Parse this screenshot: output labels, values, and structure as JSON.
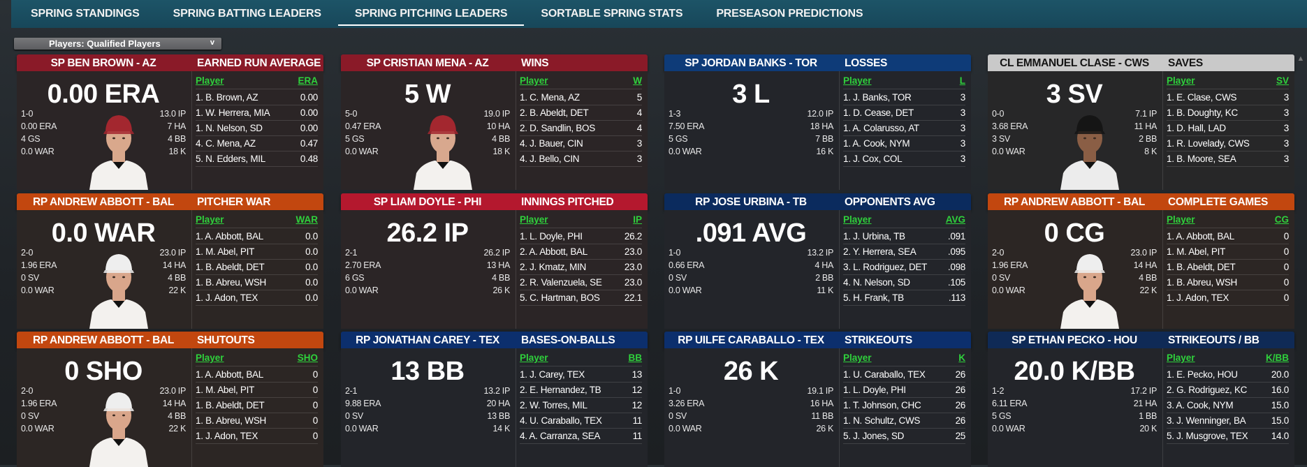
{
  "tabs": [
    {
      "label": "SPRING STANDINGS",
      "active": false
    },
    {
      "label": "SPRING BATTING LEADERS",
      "active": false
    },
    {
      "label": "SPRING PITCHING LEADERS",
      "active": true
    },
    {
      "label": "SORTABLE SPRING STATS",
      "active": false
    },
    {
      "label": "PRESEASON PREDICTIONS",
      "active": false
    }
  ],
  "filter": {
    "label": "Players: Qualified Players",
    "icon": "chevron-down-icon",
    "glyph": "v"
  },
  "table_player_header": "Player",
  "cards": [
    {
      "player": "SP BEN BROWN - AZ",
      "title": "EARNED RUN AVERAGE",
      "value": "0.00 ERA",
      "hdr": "#8a1a28",
      "hdrText": "#fff",
      "body": "#2b2526",
      "photo": true,
      "cap": "#a3272f",
      "jersey": "#f3f1ee",
      "skin": "#d9a88c",
      "left": [
        "1-0",
        "0.00 ERA",
        "4 GS",
        "0.0 WAR"
      ],
      "right": [
        "13.0 IP",
        "7 HA",
        "4 BB",
        "18 K"
      ],
      "col": "ERA",
      "rows": [
        [
          "1. B. Brown, AZ",
          "0.00"
        ],
        [
          "1. W. Herrera, MIA",
          "0.00"
        ],
        [
          "1. N. Nelson, SD",
          "0.00"
        ],
        [
          "4. C. Mena, AZ",
          "0.47"
        ],
        [
          "5. N. Edders, MIL",
          "0.48"
        ]
      ]
    },
    {
      "player": "SP CRISTIAN MENA - AZ",
      "title": "WINS",
      "value": "5 W",
      "hdr": "#8a1a28",
      "hdrText": "#fff",
      "body": "#2b2526",
      "photo": true,
      "cap": "#a3272f",
      "jersey": "#f3f1ee",
      "skin": "#d8a88e",
      "left": [
        "5-0",
        "0.47 ERA",
        "5 GS",
        "0.0 WAR"
      ],
      "right": [
        "19.0 IP",
        "10 HA",
        "4 BB",
        "18 K"
      ],
      "col": "W",
      "rows": [
        [
          "1. C. Mena, AZ",
          "5"
        ],
        [
          "2. B. Abeldt, DET",
          "4"
        ],
        [
          "2. D. Sandlin, BOS",
          "4"
        ],
        [
          "4. J. Bauer, CIN",
          "3"
        ],
        [
          "4. J. Bello, CIN",
          "3"
        ]
      ]
    },
    {
      "player": "SP JORDAN BANKS - TOR",
      "title": "LOSSES",
      "value": "3 L",
      "hdr": "#0e3b78",
      "hdrText": "#fff",
      "body": "#23252a",
      "photo": false,
      "left": [
        "1-3",
        "7.50 ERA",
        "5 GS",
        "0.0 WAR"
      ],
      "right": [
        "12.0 IP",
        "18 HA",
        "7 BB",
        "16 K"
      ],
      "col": "L",
      "rows": [
        [
          "1. J. Banks, TOR",
          "3"
        ],
        [
          "1. D. Cease, DET",
          "3"
        ],
        [
          "1. A. Colarusso, AT",
          "3"
        ],
        [
          "1. A. Cook, NYM",
          "3"
        ],
        [
          "1. J. Cox, COL",
          "3"
        ]
      ]
    },
    {
      "player": "CL EMMANUEL CLASE - CWS",
      "title": "SAVES",
      "value": "3 SV",
      "hdr": "#c9c9c9",
      "hdrText": "#151515",
      "body": "#272728",
      "photo": true,
      "cap": "#151515",
      "jersey": "#ececec",
      "skin": "#8a5e45",
      "left": [
        "0-0",
        "3.68 ERA",
        "3 SV",
        "0.0 WAR"
      ],
      "right": [
        "7.1 IP",
        "11 HA",
        "2 BB",
        "8 K"
      ],
      "col": "SV",
      "rows": [
        [
          "1. E. Clase, CWS",
          "3"
        ],
        [
          "1. B. Doughty, KC",
          "3"
        ],
        [
          "1. D. Hall, LAD",
          "3"
        ],
        [
          "1. R. Lovelady, CWS",
          "3"
        ],
        [
          "1. B. Moore, SEA",
          "3"
        ]
      ]
    },
    {
      "player": "RP ANDREW ABBOTT - BAL",
      "title": "PITCHER WAR",
      "value": "0.0 WAR",
      "hdr": "#c2470f",
      "hdrText": "#fff",
      "body": "#2c2624",
      "photo": true,
      "cap": "#eeeeee",
      "jersey": "#f3f1ee",
      "skin": "#d9a68b",
      "left": [
        "2-0",
        "1.96 ERA",
        "0 SV",
        "0.0 WAR"
      ],
      "right": [
        "23.0 IP",
        "14 HA",
        "4 BB",
        "22 K"
      ],
      "col": "WAR",
      "rows": [
        [
          "1. A. Abbott, BAL",
          "0.0"
        ],
        [
          "1. M. Abel, PIT",
          "0.0"
        ],
        [
          "1. B. Abeldt, DET",
          "0.0"
        ],
        [
          "1. B. Abreu, WSH",
          "0.0"
        ],
        [
          "1. J. Adon, TEX",
          "0.0"
        ]
      ]
    },
    {
      "player": "SP LIAM DOYLE - PHI",
      "title": "INNINGS PITCHED",
      "value": "26.2 IP",
      "hdr": "#b4182e",
      "hdrText": "#fff",
      "body": "#2b2526",
      "photo": false,
      "left": [
        "2-1",
        "2.70 ERA",
        "6 GS",
        "0.0 WAR"
      ],
      "right": [
        "26.2 IP",
        "13 HA",
        "4 BB",
        "26 K"
      ],
      "col": "IP",
      "rows": [
        [
          "1. L. Doyle, PHI",
          "26.2"
        ],
        [
          "2. A. Abbott, BAL",
          "23.0"
        ],
        [
          "2. J. Kmatz, MIN",
          "23.0"
        ],
        [
          "2. R. Valenzuela, SE",
          "23.0"
        ],
        [
          "5. C. Hartman, BOS",
          "22.1"
        ]
      ]
    },
    {
      "player": "RP JOSE URBINA - TB",
      "title": "OPPONENTS AVG",
      "value": ".091 AVG",
      "hdr": "#0b2b5e",
      "hdrText": "#fff",
      "body": "#23252a",
      "photo": false,
      "left": [
        "1-0",
        "0.66 ERA",
        "0 SV",
        "0.0 WAR"
      ],
      "right": [
        "13.2 IP",
        "4 HA",
        "2 BB",
        "11 K"
      ],
      "col": "AVG",
      "rows": [
        [
          "1. J. Urbina, TB",
          ".091"
        ],
        [
          "2. Y. Herrera, SEA",
          ".095"
        ],
        [
          "3. L. Rodriguez, DET",
          ".098"
        ],
        [
          "4. N. Nelson, SD",
          ".105"
        ],
        [
          "5. H. Frank, TB",
          ".113"
        ]
      ]
    },
    {
      "player": "RP ANDREW ABBOTT - BAL",
      "title": "COMPLETE GAMES",
      "value": "0 CG",
      "hdr": "#c2470f",
      "hdrText": "#fff",
      "body": "#2c2624",
      "photo": true,
      "cap": "#eeeeee",
      "jersey": "#f3f1ee",
      "skin": "#d9a68b",
      "left": [
        "2-0",
        "1.96 ERA",
        "0 SV",
        "0.0 WAR"
      ],
      "right": [
        "23.0 IP",
        "14 HA",
        "4 BB",
        "22 K"
      ],
      "col": "CG",
      "rows": [
        [
          "1. A. Abbott, BAL",
          "0"
        ],
        [
          "1. M. Abel, PIT",
          "0"
        ],
        [
          "1. B. Abeldt, DET",
          "0"
        ],
        [
          "1. B. Abreu, WSH",
          "0"
        ],
        [
          "1. J. Adon, TEX",
          "0"
        ]
      ]
    },
    {
      "player": "RP ANDREW ABBOTT - BAL",
      "title": "SHUTOUTS",
      "value": "0 SHO",
      "hdr": "#c2470f",
      "hdrText": "#fff",
      "body": "#2c2624",
      "photo": true,
      "cap": "#eeeeee",
      "jersey": "#f3f1ee",
      "skin": "#d9a68b",
      "left": [
        "2-0",
        "1.96 ERA",
        "0 SV",
        "0.0 WAR"
      ],
      "right": [
        "23.0 IP",
        "14 HA",
        "4 BB",
        "22 K"
      ],
      "col": "SHO",
      "rows": [
        [
          "1. A. Abbott, BAL",
          "0"
        ],
        [
          "1. M. Abel, PIT",
          "0"
        ],
        [
          "1. B. Abeldt, DET",
          "0"
        ],
        [
          "1. B. Abreu, WSH",
          "0"
        ],
        [
          "1. J. Adon, TEX",
          "0"
        ]
      ]
    },
    {
      "player": "RP JONATHAN CAREY - TEX",
      "title": "BASES-ON-BALLS",
      "value": "13 BB",
      "hdr": "#0c2f6d",
      "hdrText": "#fff",
      "body": "#23252a",
      "photo": false,
      "left": [
        "2-1",
        "9.88 ERA",
        "0 SV",
        "0.0 WAR"
      ],
      "right": [
        "13.2 IP",
        "20 HA",
        "13 BB",
        "14 K"
      ],
      "col": "BB",
      "rows": [
        [
          "1. J. Carey, TEX",
          "13"
        ],
        [
          "2. E. Hernandez, TB",
          "12"
        ],
        [
          "2. W. Torres, MIL",
          "12"
        ],
        [
          "4. U. Caraballo, TEX",
          "11"
        ],
        [
          "4. A. Carranza, SEA",
          "11"
        ]
      ]
    },
    {
      "player": "RP UILFE CARABALLO - TEX",
      "title": "STRIKEOUTS",
      "value": "26 K",
      "hdr": "#0c2f6d",
      "hdrText": "#fff",
      "body": "#23252a",
      "photo": false,
      "left": [
        "1-0",
        "3.26 ERA",
        "0 SV",
        "0.0 WAR"
      ],
      "right": [
        "19.1 IP",
        "16 HA",
        "11 BB",
        "26 K"
      ],
      "col": "K",
      "rows": [
        [
          "1. U. Caraballo, TEX",
          "26"
        ],
        [
          "1. L. Doyle, PHI",
          "26"
        ],
        [
          "1. T. Johnson, CHC",
          "26"
        ],
        [
          "1. N. Schultz, CWS",
          "26"
        ],
        [
          "5. J. Jones, SD",
          "25"
        ]
      ]
    },
    {
      "player": "SP ETHAN PECKO - HOU",
      "title": "STRIKEOUTS / BB",
      "value": "20.0 K/BB",
      "hdr": "#0f2a56",
      "hdrText": "#fff",
      "body": "#23252a",
      "photo": false,
      "left": [
        "1-2",
        "6.11 ERA",
        "5 GS",
        "0.0 WAR"
      ],
      "right": [
        "17.2 IP",
        "21 HA",
        "1 BB",
        "20 K"
      ],
      "col": "K/BB",
      "rows": [
        [
          "1. E. Pecko, HOU",
          "20.0"
        ],
        [
          "2. G. Rodriguez, KC",
          "16.0"
        ],
        [
          "3. A. Cook, NYM",
          "15.0"
        ],
        [
          "3. J. Wenninger, BA",
          "15.0"
        ],
        [
          "5. J. Musgrove, TEX",
          "14.0"
        ]
      ]
    }
  ]
}
